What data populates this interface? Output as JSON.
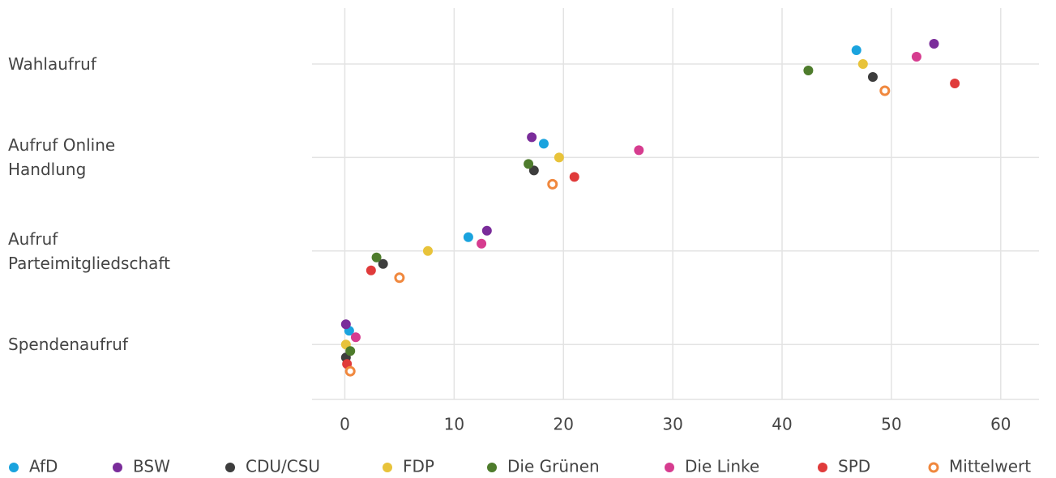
{
  "chart_data": {
    "type": "dot",
    "categories": [
      "Wahlaufruf",
      "Aufruf Online Handlung",
      "Aufruf Parteimitgliedschaft",
      "Spendenaufruf"
    ],
    "series": [
      {
        "name": "AfD",
        "color": "#1aa3de",
        "values": [
          46.8,
          18.2,
          11.3,
          0.4
        ]
      },
      {
        "name": "BSW",
        "color": "#7a2c9a",
        "values": [
          53.9,
          17.1,
          13.0,
          0.1
        ]
      },
      {
        "name": "CDU/CSU",
        "color": "#3d3d3d",
        "values": [
          48.3,
          17.3,
          3.5,
          0.1
        ]
      },
      {
        "name": "FDP",
        "color": "#e8c33a",
        "values": [
          47.4,
          19.6,
          7.6,
          0.1
        ]
      },
      {
        "name": "Die Grünen",
        "color": "#4e7c2c",
        "values": [
          42.4,
          16.8,
          2.9,
          0.5
        ]
      },
      {
        "name": "Die Linke",
        "color": "#d63c8f",
        "values": [
          52.3,
          26.9,
          12.5,
          1.0
        ]
      },
      {
        "name": "SPD",
        "color": "#e03b3b",
        "values": [
          55.8,
          21.0,
          2.4,
          0.2
        ]
      },
      {
        "name": "Mittelwert",
        "color": "#f0883e",
        "hollow": true,
        "values": [
          49.4,
          19.0,
          5.0,
          0.5
        ]
      }
    ],
    "xlim": [
      -3,
      63.5
    ],
    "xticks": [
      0,
      10,
      20,
      30,
      40,
      50,
      60
    ],
    "grid": true,
    "legend": "bottom"
  }
}
